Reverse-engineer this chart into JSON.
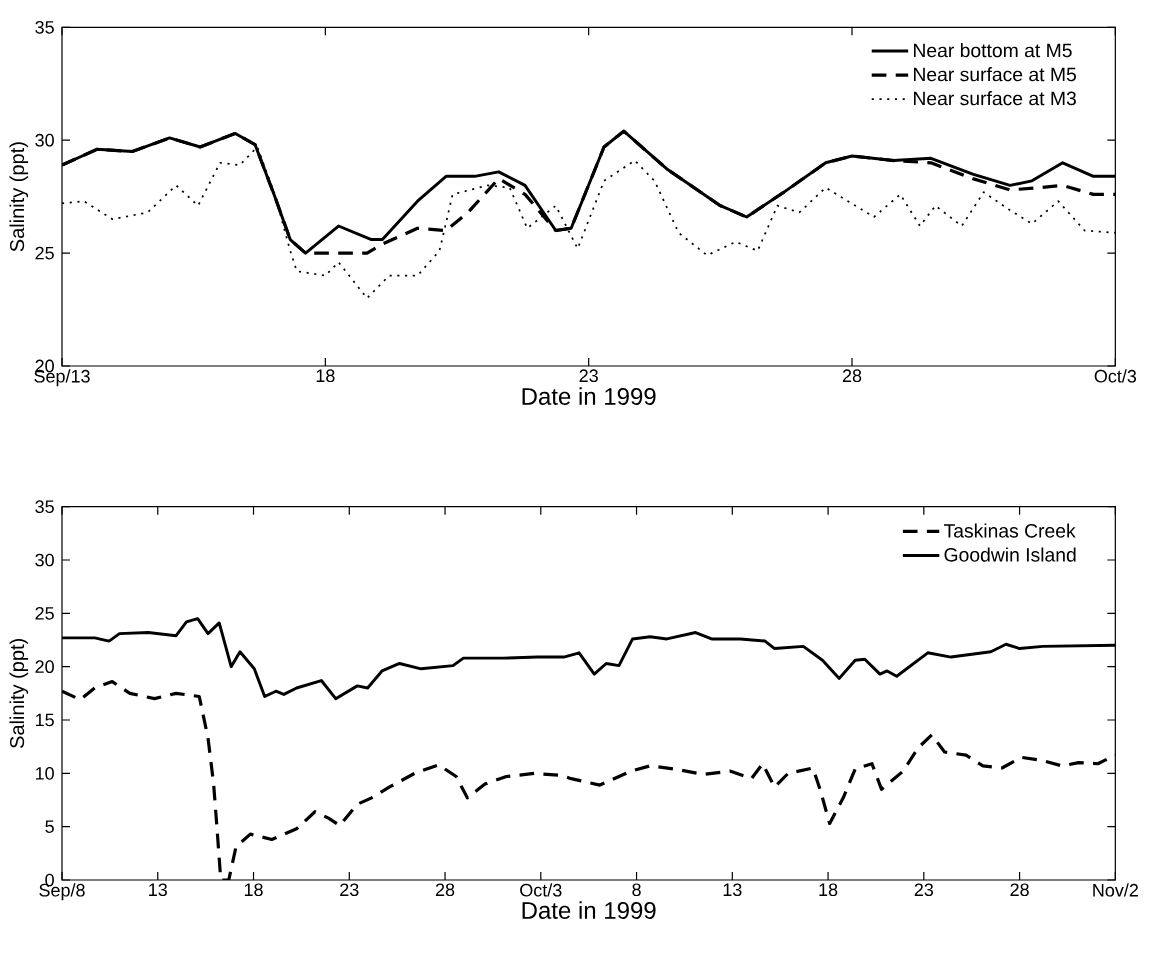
{
  "chart_data": [
    {
      "type": "line",
      "xlabel": "Date in 1999",
      "ylabel": "Salinity (ppt)",
      "legend": "top right",
      "xlim": [
        "1999-09-13",
        "1999-10-03"
      ],
      "xticks": [
        {
          "value": "1999-09-13",
          "label": "Sep/13"
        },
        {
          "value": "1999-09-18",
          "label": "18"
        },
        {
          "value": "1999-09-23",
          "label": "23"
        },
        {
          "value": "1999-09-28",
          "label": "28"
        },
        {
          "value": "1999-10-03",
          "label": "Oct/3"
        }
      ],
      "ylim": [
        20,
        35
      ],
      "yticks": [
        20,
        25,
        30,
        35
      ],
      "series": [
        {
          "name": "Near bottom at M5",
          "color": "#000000",
          "line_style": "solid",
          "x": [
            "1999-09-13T00:00",
            "1999-09-13T16:00",
            "1999-09-14T08:00",
            "1999-09-15T01:00",
            "1999-09-15T15:00",
            "1999-09-16T07:00",
            "1999-09-16T16:00",
            "1999-09-17T01:00",
            "1999-09-17T08:00",
            "1999-09-17T15:00",
            "1999-09-18T06:00",
            "1999-09-18T21:00",
            "1999-09-19T02:00",
            "1999-09-19T18:00",
            "1999-09-20T07:00",
            "1999-09-20T20:00",
            "1999-09-21T07:00",
            "1999-09-21T19:00",
            "1999-09-22T09:00",
            "1999-09-22T16:00",
            "1999-09-22T21:00",
            "1999-09-23T07:00",
            "1999-09-23T16:00",
            "1999-09-24T12:00",
            "1999-09-25T12:00",
            "1999-09-26T00:00",
            "1999-09-26T17:00",
            "1999-09-27T12:00",
            "1999-09-28T00:00",
            "1999-09-28T19:00",
            "1999-09-29T12:00",
            "1999-09-30T07:00",
            "1999-10-01T00:00",
            "1999-10-01T10:00",
            "1999-10-02T00:00",
            "1999-10-02T14:00",
            "1999-10-03T00:00"
          ],
          "values": [
            28.9,
            29.6,
            29.5,
            30.1,
            29.7,
            30.3,
            29.8,
            27.5,
            25.6,
            25.0,
            26.2,
            25.6,
            25.6,
            27.3,
            28.4,
            28.4,
            28.6,
            28.0,
            26.0,
            26.1,
            27.3,
            29.7,
            30.4,
            28.7,
            27.1,
            26.6,
            27.7,
            29.0,
            29.3,
            29.1,
            29.2,
            28.5,
            28.0,
            28.2,
            29.0,
            28.4,
            28.4
          ]
        },
        {
          "name": "Near surface at M5",
          "color": "#000000",
          "line_style": "dashed",
          "x": [
            "1999-09-13T00:00",
            "1999-09-13T16:00",
            "1999-09-14T08:00",
            "1999-09-15T01:00",
            "1999-09-15T15:00",
            "1999-09-16T07:00",
            "1999-09-16T16:00",
            "1999-09-17T01:00",
            "1999-09-17T08:00",
            "1999-09-17T15:00",
            "1999-09-18T00:00",
            "1999-09-18T19:00",
            "1999-09-19T02:00",
            "1999-09-19T18:00",
            "1999-09-20T07:00",
            "1999-09-20T17:00",
            "1999-09-21T07:00",
            "1999-09-21T19:00",
            "1999-09-22T09:00",
            "1999-09-22T16:00",
            "1999-09-22T21:00",
            "1999-09-23T07:00",
            "1999-09-23T16:00",
            "1999-09-24T12:00",
            "1999-09-25T12:00",
            "1999-09-26T00:00",
            "1999-09-26T17:00",
            "1999-09-27T12:00",
            "1999-09-28T00:00",
            "1999-09-28T19:00",
            "1999-09-29T12:00",
            "1999-09-30T07:00",
            "1999-10-01T00:00",
            "1999-10-01T14:00",
            "1999-10-02T00:00",
            "1999-10-02T14:00",
            "1999-10-03T00:00"
          ],
          "values": [
            28.9,
            29.6,
            29.5,
            30.1,
            29.7,
            30.3,
            29.8,
            27.5,
            25.6,
            25.0,
            25.0,
            25.0,
            25.4,
            26.1,
            26.0,
            26.8,
            28.3,
            27.6,
            26.0,
            26.1,
            27.3,
            29.7,
            30.4,
            28.7,
            27.1,
            26.6,
            27.7,
            29.0,
            29.3,
            29.1,
            29.0,
            28.3,
            27.8,
            27.9,
            28.0,
            27.6,
            27.6
          ]
        },
        {
          "name": "Near surface at M3",
          "color": "#000000",
          "line_style": "dotted",
          "x": [
            "1999-09-13T00:00",
            "1999-09-13T10:00",
            "1999-09-13T23:00",
            "1999-09-14T15:00",
            "1999-09-15T04:00",
            "1999-09-15T14:00",
            "1999-09-16T00:00",
            "1999-09-16T09:00",
            "1999-09-16T17:00",
            "1999-09-17T01:00",
            "1999-09-17T08:00",
            "1999-09-17T11:00",
            "1999-09-18T00:00",
            "1999-09-18T06:00",
            "1999-09-18T19:00",
            "1999-09-19T05:00",
            "1999-09-19T18:00",
            "1999-09-20T04:00",
            "1999-09-20T10:00",
            "1999-09-21T02:00",
            "1999-09-21T12:00",
            "1999-09-21T20:00",
            "1999-09-22T09:00",
            "1999-09-22T19:00",
            "1999-09-23T07:00",
            "1999-09-23T21:00",
            "1999-09-24T06:00",
            "1999-09-24T17:00",
            "1999-09-25T06:00",
            "1999-09-25T19:00",
            "1999-09-26T05:00",
            "1999-09-26T14:00",
            "1999-09-27T00:00",
            "1999-09-27T12:00",
            "1999-09-28T10:00",
            "1999-09-28T22:00",
            "1999-09-29T07:00",
            "1999-09-29T14:00",
            "1999-09-30T02:00",
            "1999-09-30T12:00",
            "1999-10-01T00:00",
            "1999-10-01T10:00",
            "1999-10-01T22:00",
            "1999-10-02T10:00",
            "1999-10-03T00:00"
          ],
          "values": [
            27.2,
            27.3,
            26.5,
            26.8,
            28.0,
            27.1,
            29.0,
            28.9,
            29.7,
            27.6,
            25.1,
            24.2,
            24.0,
            24.6,
            23.0,
            24.0,
            24.0,
            25.1,
            27.6,
            28.0,
            27.9,
            26.1,
            27.1,
            25.2,
            28.2,
            29.1,
            28.2,
            25.9,
            24.9,
            25.5,
            25.1,
            27.1,
            26.8,
            27.9,
            26.6,
            27.6,
            26.2,
            27.1,
            26.2,
            27.7,
            26.9,
            26.3,
            27.3,
            26.0,
            25.9
          ]
        }
      ]
    },
    {
      "type": "line",
      "xlabel": "Date in 1999",
      "ylabel": "Salinity (ppt)",
      "legend": "top right",
      "xlim": [
        "1999-09-08",
        "1999-11-02"
      ],
      "xticks": [
        {
          "value": "1999-09-08",
          "label": "Sep/8"
        },
        {
          "value": "1999-09-13",
          "label": "13"
        },
        {
          "value": "1999-09-18",
          "label": "18"
        },
        {
          "value": "1999-09-23",
          "label": "23"
        },
        {
          "value": "1999-09-28",
          "label": "28"
        },
        {
          "value": "1999-10-03",
          "label": "Oct/3"
        },
        {
          "value": "1999-10-08",
          "label": "8"
        },
        {
          "value": "1999-10-13",
          "label": "13"
        },
        {
          "value": "1999-10-18",
          "label": "18"
        },
        {
          "value": "1999-10-23",
          "label": "23"
        },
        {
          "value": "1999-10-28",
          "label": "28"
        },
        {
          "value": "1999-11-02",
          "label": "Nov/2"
        }
      ],
      "ylim": [
        0,
        35
      ],
      "yticks": [
        0,
        5,
        10,
        15,
        20,
        25,
        30,
        35
      ],
      "series": [
        {
          "name": "Taskinas Creek",
          "color": "#000000",
          "line_style": "dashed",
          "x": [
            "1999-09-08T00:00",
            "1999-09-08T23:00",
            "1999-09-09T17:00",
            "1999-09-10T15:00",
            "1999-09-11T13:00",
            "1999-09-12T20:00",
            "1999-09-13T23:00",
            "1999-09-15T04:00",
            "1999-09-15T15:00",
            "1999-09-15T22:00",
            "1999-09-16T02:00",
            "1999-09-16T07:00",
            "1999-09-16T17:00",
            "1999-09-17T02:00",
            "1999-09-17T20:00",
            "1999-09-18T23:00",
            "1999-09-20T06:00",
            "1999-09-21T05:00",
            "1999-09-21T22:00",
            "1999-09-22T12:00",
            "1999-09-23T10:00",
            "1999-09-24T04:00",
            "1999-09-25T02:00",
            "1999-09-26T10:00",
            "1999-09-27T16:00",
            "1999-09-28T14:00",
            "1999-09-29T04:00",
            "1999-09-30T02:00",
            "1999-10-01T05:00",
            "1999-10-02T16:00",
            "1999-10-04T02:00",
            "1999-10-04T14:00",
            "1999-10-06T02:00",
            "1999-10-07T17:00",
            "1999-10-08T17:00",
            "1999-10-10T00:00",
            "1999-10-11T12:00",
            "1999-10-12T22:00",
            "1999-10-14T00:00",
            "1999-10-14T14:00",
            "1999-10-15T05:00",
            "1999-10-15T22:00",
            "1999-10-17T05:00",
            "1999-10-17T14:00",
            "1999-10-18T02:00",
            "1999-10-18T19:00",
            "1999-10-19T10:00",
            "1999-10-20T07:00",
            "1999-10-20T19:00",
            "1999-10-21T22:00",
            "1999-10-22T17:00",
            "1999-10-23T10:00",
            "1999-10-24T02:00",
            "1999-10-25T05:00",
            "1999-10-26T02:00",
            "1999-10-27T02:00",
            "1999-10-28T02:00",
            "1999-10-29T05:00",
            "1999-10-30T05:00",
            "1999-10-31T02:00",
            "1999-11-01T02:00",
            "1999-11-02T00:00"
          ],
          "values": [
            17.7,
            16.9,
            18.0,
            18.6,
            17.5,
            17.0,
            17.5,
            17.2,
            13.3,
            9.0,
            5.1,
            0,
            0,
            3.1,
            4.3,
            3.8,
            4.8,
            6.4,
            5.8,
            5.1,
            7.1,
            7.7,
            8.7,
            10.0,
            10.8,
            9.7,
            7.7,
            9.0,
            9.7,
            10.0,
            9.8,
            9.5,
            8.9,
            10.2,
            10.7,
            10.4,
            9.9,
            10.2,
            9.5,
            10.9,
            8.7,
            10.0,
            10.5,
            8.5,
            5.3,
            7.7,
            10.4,
            10.9,
            8.5,
            10.2,
            12.4,
            13.6,
            12.0,
            11.7,
            10.7,
            10.5,
            11.5,
            11.2,
            10.7,
            11.0,
            10.9,
            11.7
          ]
        },
        {
          "name": "Goodwin Island",
          "color": "#000000",
          "line_style": "solid",
          "x": [
            "1999-09-08T00:00",
            "1999-09-09T17:00",
            "1999-09-10T11:00",
            "1999-09-11T00:00",
            "1999-09-12T12:00",
            "1999-09-13T23:00",
            "1999-09-14T12:00",
            "1999-09-15T02:00",
            "1999-09-15T15:00",
            "1999-09-16T05:00",
            "1999-09-16T20:00",
            "1999-09-17T07:00",
            "1999-09-18T01:00",
            "1999-09-18T14:00",
            "1999-09-19T04:00",
            "1999-09-19T14:00",
            "1999-09-20T06:00",
            "1999-09-21T13:00",
            "1999-09-22T07:00",
            "1999-09-23T10:00",
            "1999-09-23T23:00",
            "1999-09-24T17:00",
            "1999-09-25T15:00",
            "1999-09-26T18:00",
            "1999-09-28T10:00",
            "1999-09-28T23:00",
            "1999-10-01T00:00",
            "1999-10-02T20:00",
            "1999-10-04T05:00",
            "1999-10-05T00:00",
            "1999-10-05T19:00",
            "1999-10-06T10:00",
            "1999-10-07T02:00",
            "1999-10-07T19:00",
            "1999-10-08T17:00",
            "1999-10-09T14:00",
            "1999-10-11T02:00",
            "1999-10-11T22:00",
            "1999-10-13T10:00",
            "1999-10-14T17:00",
            "1999-10-15T05:00",
            "1999-10-16T17:00",
            "1999-10-17T17:00",
            "1999-10-18T14:00",
            "1999-10-19T10:00",
            "1999-10-19T22:00",
            "1999-10-20T17:00",
            "1999-10-21T02:00",
            "1999-10-21T14:00",
            "1999-10-23T05:00",
            "1999-10-24T10:00",
            "1999-10-26T12:00",
            "1999-10-27T07:00",
            "1999-10-28T00:00",
            "1999-10-29T05:00",
            "1999-11-02T00:00"
          ],
          "values": [
            22.7,
            22.7,
            22.4,
            23.1,
            23.2,
            22.9,
            24.2,
            24.5,
            23.1,
            24.1,
            20.0,
            21.4,
            19.8,
            17.2,
            17.7,
            17.4,
            18.0,
            18.7,
            17.0,
            18.2,
            18.0,
            19.6,
            20.3,
            19.8,
            20.1,
            20.8,
            20.8,
            20.9,
            20.9,
            21.3,
            19.3,
            20.3,
            20.1,
            22.6,
            22.8,
            22.6,
            23.2,
            22.6,
            22.6,
            22.4,
            21.7,
            21.9,
            20.6,
            18.9,
            20.6,
            20.7,
            19.3,
            19.6,
            19.1,
            21.3,
            20.9,
            21.4,
            22.1,
            21.7,
            21.9,
            22.0
          ]
        }
      ]
    }
  ]
}
